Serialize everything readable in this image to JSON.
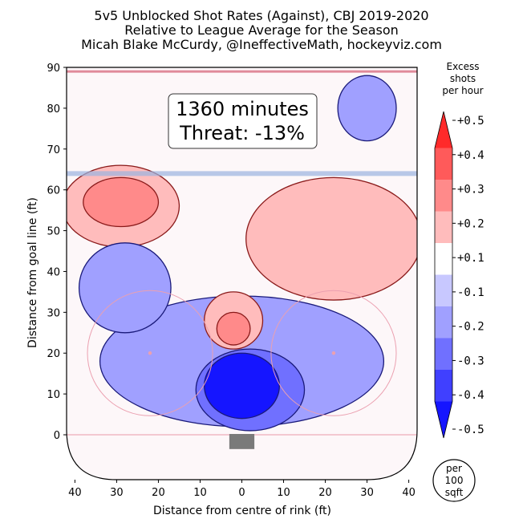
{
  "chart_data": {
    "type": "heatmap",
    "title": "5v5 Unblocked Shot Rates (Against), CBJ 2019-2020",
    "subtitle": "Relative to League Average for the Season",
    "credit": "Micah Blake McCurdy, @IneffectiveMath, hockeyviz.com",
    "xlabel": "Distance from centre of rink (ft)",
    "ylabel": "Distance from goal line (ft)",
    "xlim": [
      -42,
      42
    ],
    "ylim": [
      -11,
      90
    ],
    "x_ticks": [
      -40,
      -30,
      -20,
      -10,
      0,
      10,
      20,
      30,
      40
    ],
    "x_tick_labels": [
      "40",
      "30",
      "20",
      "10",
      "0",
      "10",
      "20",
      "30",
      "40"
    ],
    "y_ticks": [
      0,
      10,
      20,
      30,
      40,
      50,
      60,
      70,
      80,
      90
    ],
    "y_tick_labels": [
      "0",
      "10",
      "20",
      "30",
      "40",
      "50",
      "60",
      "70",
      "80",
      "90"
    ],
    "annotation": [
      "1360 minutes",
      "Threat: -13%"
    ],
    "colorbar": {
      "title": [
        "Excess",
        "shots",
        "per hour"
      ],
      "labels": [
        "+0.5",
        "+0.4",
        "+0.3",
        "+0.2",
        "+0.1",
        "-0.1",
        "-0.2",
        "-0.3",
        "-0.4",
        "-0.5"
      ],
      "levels": [
        0.5,
        0.4,
        0.3,
        0.2,
        0.1,
        -0.1,
        -0.2,
        -0.3,
        -0.4,
        -0.5
      ],
      "colors": [
        "#ff2a2a",
        "#ff5a5a",
        "#ff8a8a",
        "#ffbcbc",
        "#ffffff",
        "#c8c8ff",
        "#a0a0ff",
        "#7070ff",
        "#4040ff",
        "#1515ff"
      ],
      "unit": [
        "per",
        "100",
        "sqft"
      ]
    },
    "regions": [
      {
        "name": "slot-deficit",
        "level": -0.5,
        "cx": 0,
        "cy": 12,
        "rx": 9,
        "ry": 8
      },
      {
        "name": "slot-deficit-ring",
        "level": -0.3,
        "cx": 2,
        "cy": 11,
        "rx": 13,
        "ry": 10
      },
      {
        "name": "lower-zone-deficit",
        "level": -0.2,
        "cx": 0,
        "cy": 18,
        "rx": 34,
        "ry": 16
      },
      {
        "name": "left-point-excess",
        "level": 0.3,
        "cx": -29,
        "cy": 57,
        "rx": 9,
        "ry": 6
      },
      {
        "name": "left-point-excess-outer",
        "level": 0.2,
        "cx": -29,
        "cy": 56,
        "rx": 14,
        "ry": 10
      },
      {
        "name": "right-blue-line-excess",
        "level": 0.2,
        "cx": 22,
        "cy": 48,
        "rx": 21,
        "ry": 15
      },
      {
        "name": "high-slot-excess",
        "level": 0.3,
        "cx": -2,
        "cy": 26,
        "rx": 4,
        "ry": 4
      },
      {
        "name": "high-slot-excess-outer",
        "level": 0.2,
        "cx": -2,
        "cy": 28,
        "rx": 7,
        "ry": 7
      },
      {
        "name": "top-right-deficit",
        "level": -0.2,
        "cx": 30,
        "cy": 80,
        "rx": 7,
        "ry": 8
      },
      {
        "name": "left-mid-deficit",
        "level": -0.2,
        "cx": -28,
        "cy": 36,
        "rx": 11,
        "ry": 11
      }
    ]
  }
}
